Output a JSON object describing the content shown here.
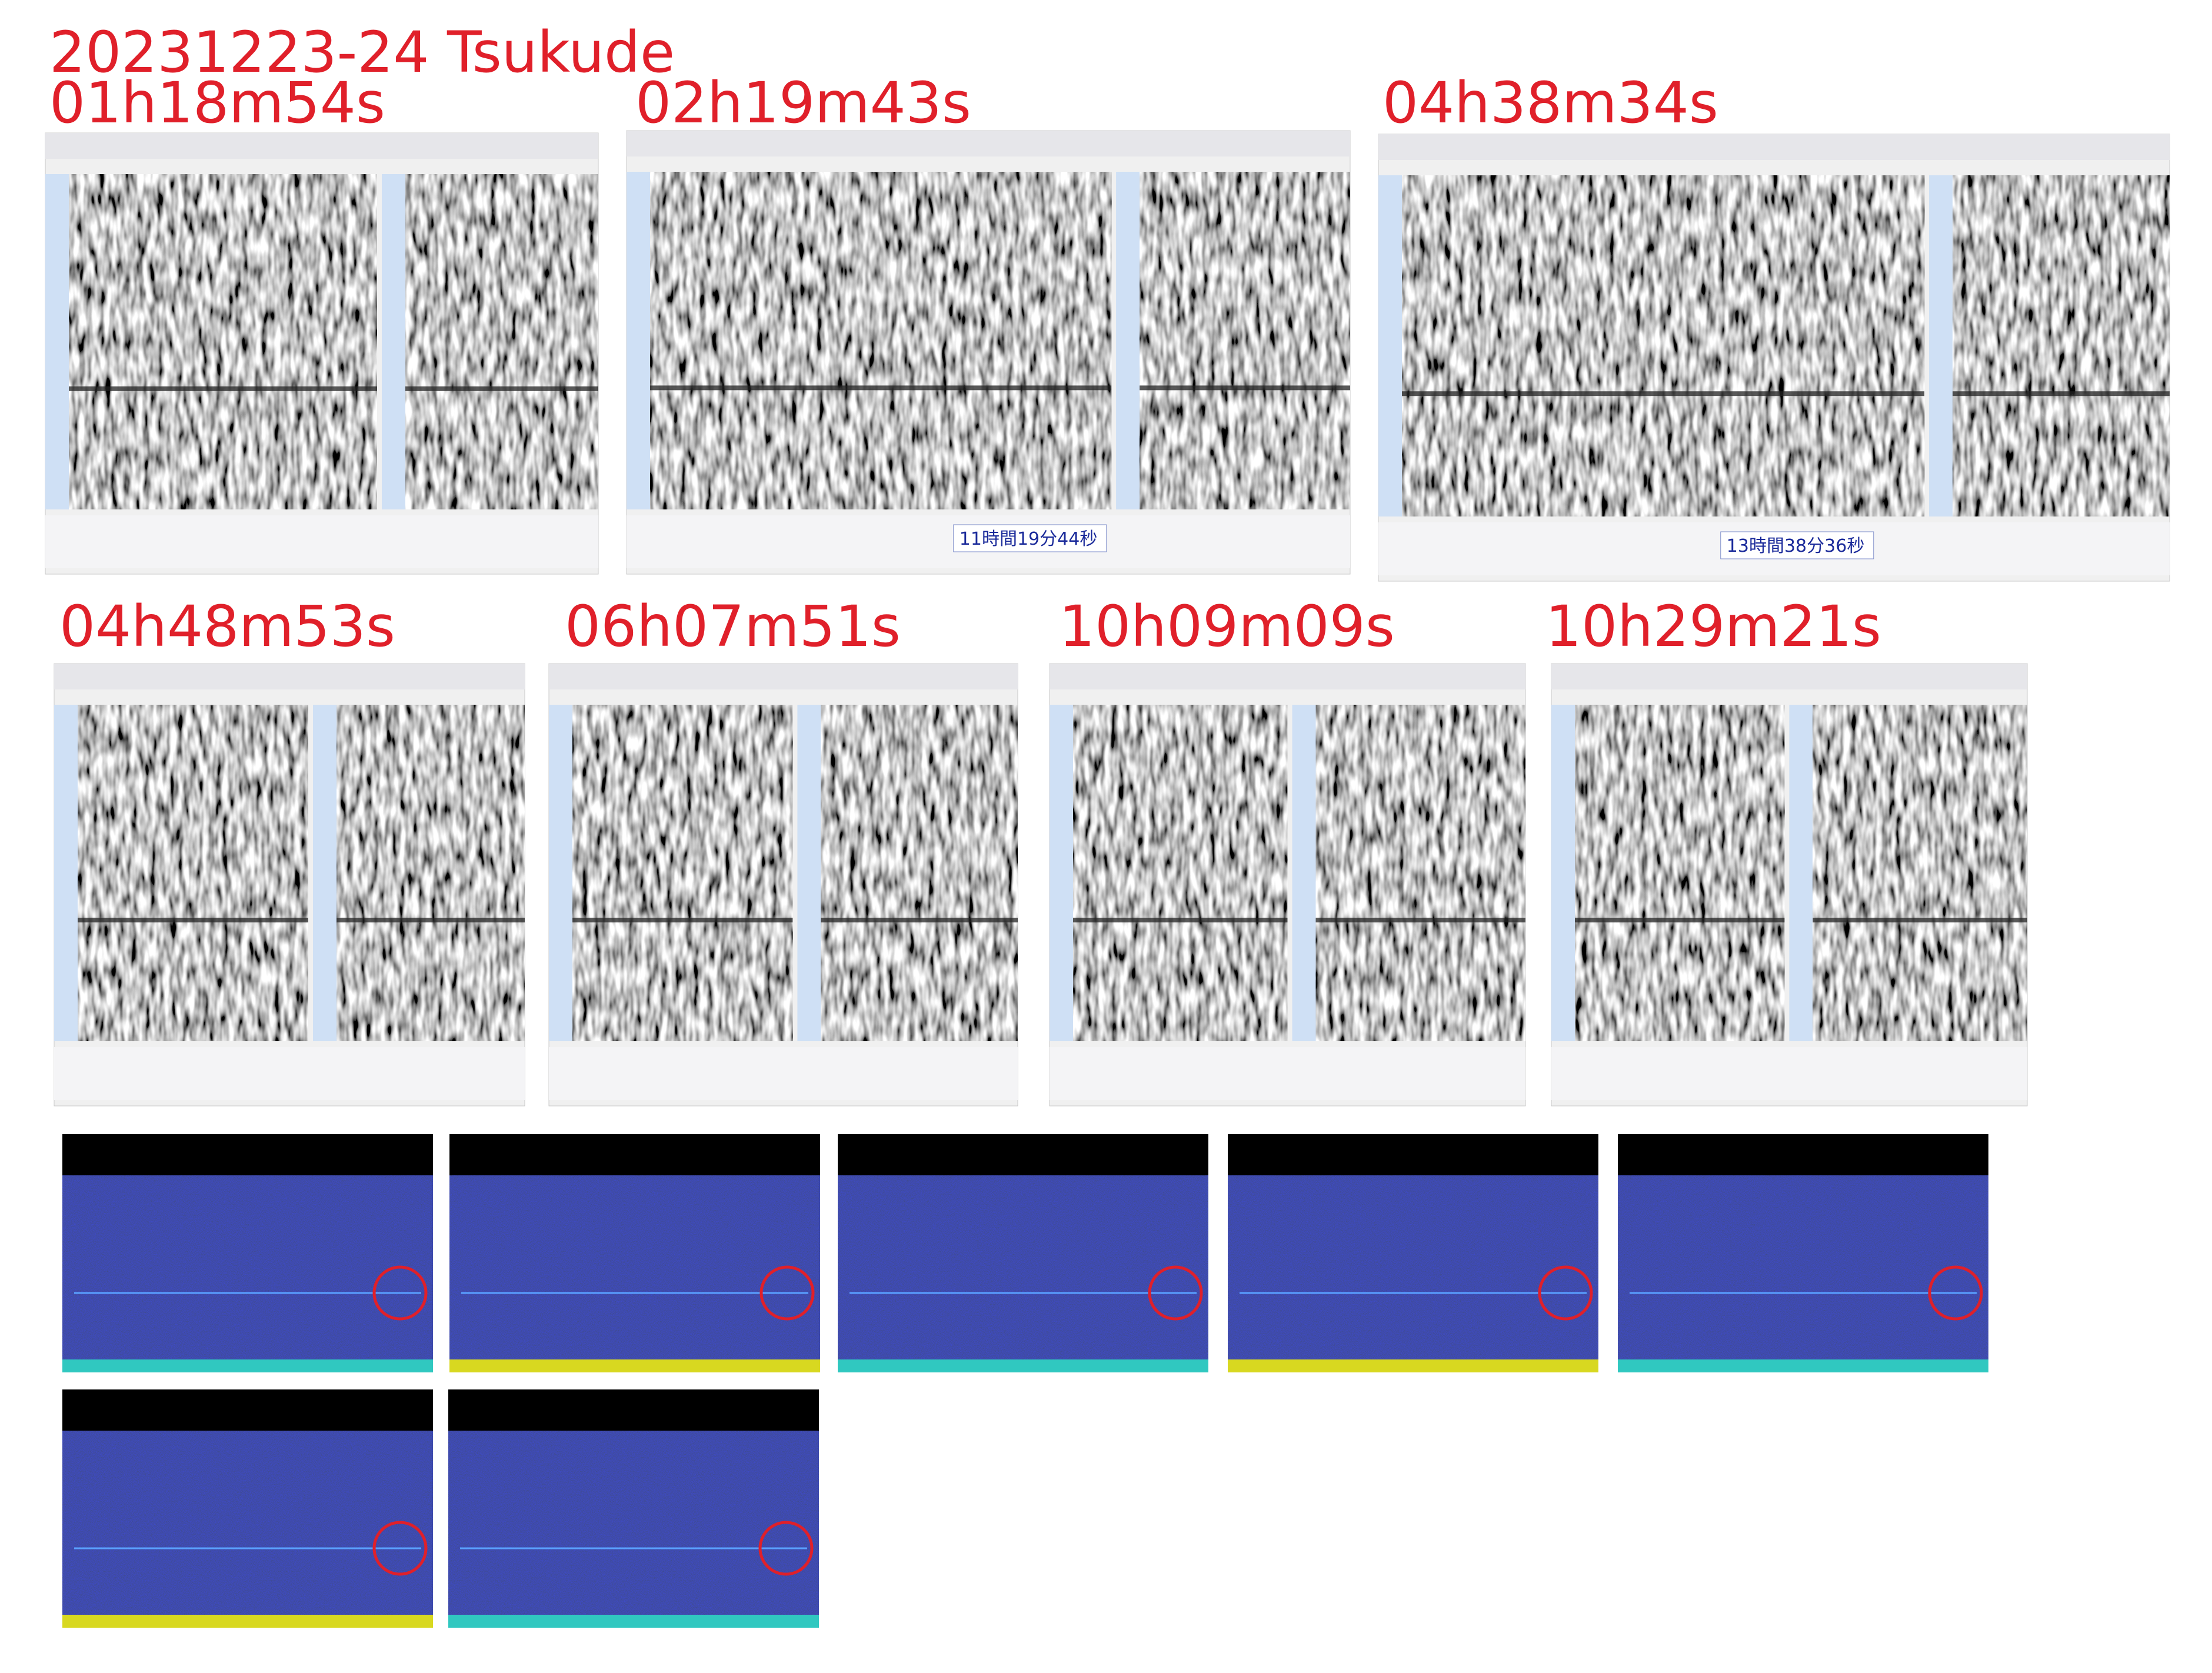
{
  "header": {
    "title": "20231223-24  Tsukude"
  },
  "spectrograms": [
    {
      "label": "01h18m54s"
    },
    {
      "label": "02h19m43s",
      "time_display": "11時間19分44秒"
    },
    {
      "label": "04h38m34s",
      "time_display": "13時間38分36秒"
    },
    {
      "label": "04h48m53s"
    },
    {
      "label": "06h07m51s"
    },
    {
      "label": "10h09m09s"
    },
    {
      "label": "10h29m21s"
    }
  ]
}
